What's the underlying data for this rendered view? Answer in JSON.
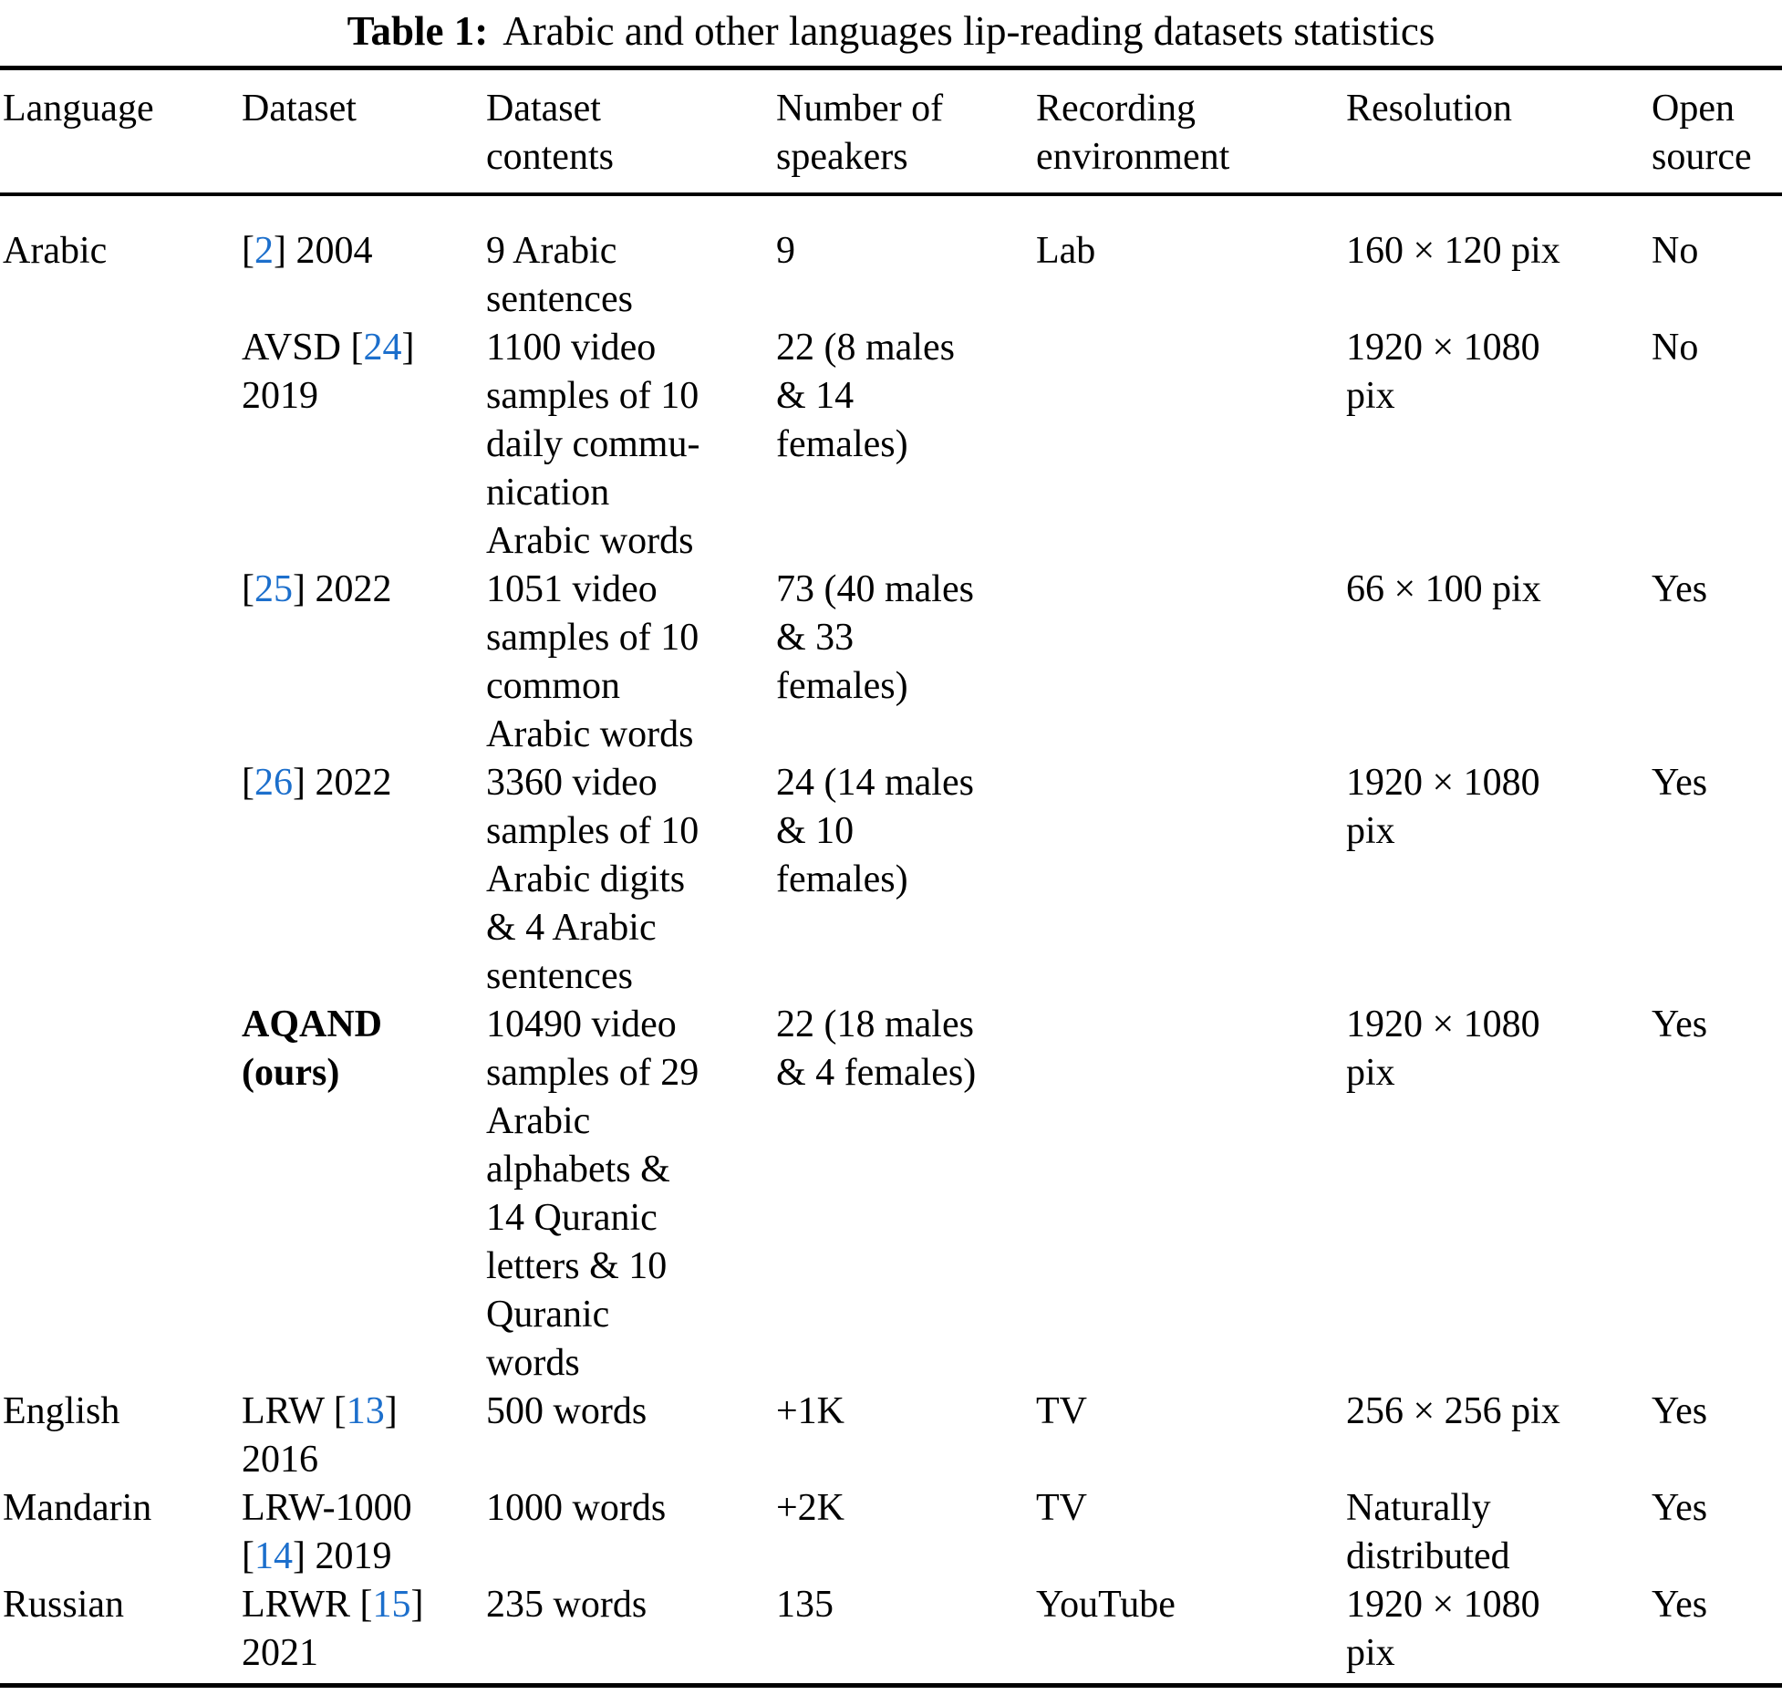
{
  "caption": {
    "label": "Table 1:",
    "text": "Arabic and other languages lip-reading datasets statistics"
  },
  "colors": {
    "background": "#ffffff",
    "text": "#000000",
    "citation": "#1c6fcc"
  },
  "table": {
    "columns": [
      {
        "label": "Language"
      },
      {
        "label": "Dataset"
      },
      {
        "label": "Dataset\ncontents"
      },
      {
        "label": "Number of\nspeakers"
      },
      {
        "label": "Recording\nenvironment"
      },
      {
        "label": "Resolution"
      },
      {
        "label": "Open\nsource"
      }
    ],
    "rows": [
      {
        "cells": [
          "Arabic",
          {
            "parts": [
              {
                "t": "["
              },
              {
                "cite": "2"
              },
              {
                "t": "] 2004"
              }
            ]
          },
          "9 Arabic\nsentences",
          "9",
          "Lab",
          "160 × 120 pix",
          "No"
        ]
      },
      {
        "cells": [
          "",
          {
            "parts": [
              {
                "t": "AVSD ["
              },
              {
                "cite": "24"
              },
              {
                "t": "]\n2019"
              }
            ]
          },
          "1100 video\nsamples of 10\ndaily commu-\nnication\nArabic words",
          "22 (8 males\n& 14\nfemales)",
          "",
          "1920 × 1080\npix",
          "No"
        ]
      },
      {
        "cells": [
          "",
          {
            "parts": [
              {
                "t": "["
              },
              {
                "cite": "25"
              },
              {
                "t": "] 2022"
              }
            ]
          },
          "1051 video\nsamples of 10\ncommon\nArabic words",
          "73 (40 males\n& 33\nfemales)",
          "",
          "66 × 100 pix",
          "Yes"
        ]
      },
      {
        "cells": [
          "",
          {
            "parts": [
              {
                "t": "["
              },
              {
                "cite": "26"
              },
              {
                "t": "] 2022"
              }
            ]
          },
          "3360 video\nsamples of 10\nArabic digits\n& 4 Arabic\nsentences",
          "24 (14 males\n& 10\nfemales)",
          "",
          "1920 × 1080\npix",
          "Yes"
        ]
      },
      {
        "cells": [
          "",
          {
            "bold": true,
            "parts": [
              {
                "t": "AQAND\n(ours)"
              }
            ]
          },
          "10490 video\nsamples of 29\nArabic\nalphabets &\n14 Quranic\nletters & 10\nQuranic\nwords",
          "22 (18 males\n& 4 females)",
          "",
          "1920 × 1080\npix",
          "Yes"
        ]
      },
      {
        "cells": [
          "English",
          {
            "parts": [
              {
                "t": "LRW ["
              },
              {
                "cite": "13"
              },
              {
                "t": "]\n2016"
              }
            ]
          },
          "500 words",
          "+1K",
          "TV",
          "256 × 256 pix",
          "Yes"
        ]
      },
      {
        "cells": [
          "Mandarin",
          {
            "parts": [
              {
                "t": "LRW-1000\n["
              },
              {
                "cite": "14"
              },
              {
                "t": "] 2019"
              }
            ]
          },
          "1000 words",
          "+2K",
          "TV",
          "Naturally\ndistributed",
          "Yes"
        ]
      },
      {
        "cells": [
          "Russian",
          {
            "parts": [
              {
                "t": "LRWR ["
              },
              {
                "cite": "15"
              },
              {
                "t": "]\n2021"
              }
            ]
          },
          "235 words",
          "135",
          "YouTube",
          "1920 × 1080\npix",
          "Yes"
        ]
      }
    ]
  }
}
